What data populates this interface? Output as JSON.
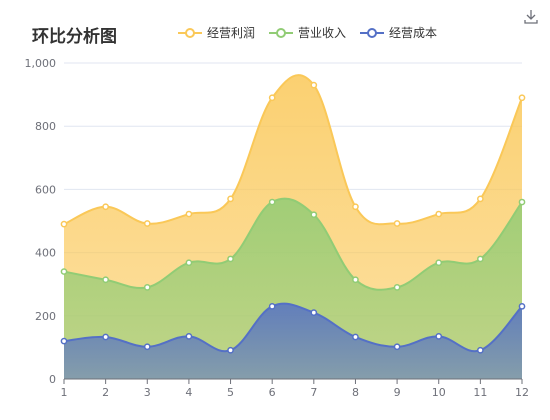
{
  "chart_data": {
    "type": "area",
    "title": "环比分析图",
    "x": [
      "1",
      "2",
      "3",
      "4",
      "5",
      "6",
      "7",
      "8",
      "9",
      "10",
      "11",
      "12"
    ],
    "series": [
      {
        "name": "经营利润",
        "color": "#fac858",
        "values": [
          490,
          545,
          492,
          522,
          570,
          890,
          930,
          545,
          492,
          522,
          570,
          890
        ]
      },
      {
        "name": "营业收入",
        "color": "#91cc75",
        "values": [
          340,
          314,
          290,
          368,
          380,
          560,
          520,
          314,
          290,
          368,
          380,
          560
        ]
      },
      {
        "name": "经营成本",
        "color": "#5470c6",
        "values": [
          120,
          133,
          102,
          135,
          91,
          230,
          210,
          133,
          102,
          135,
          91,
          230
        ]
      }
    ],
    "ylim": [
      0,
      1000
    ],
    "yticks": [
      "0",
      "200",
      "400",
      "600",
      "800",
      "1,000"
    ],
    "grid": true,
    "legend": "top"
  },
  "toolbar": {
    "download_icon": "download-icon"
  }
}
